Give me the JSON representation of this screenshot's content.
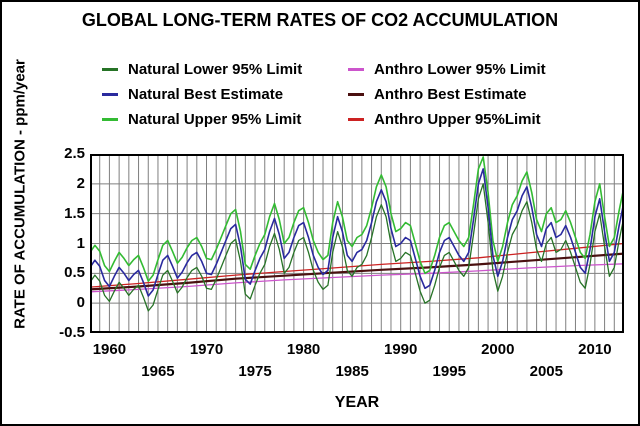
{
  "chart_data": {
    "type": "line",
    "title": "GLOBAL LONG-TERM RATES OF CO2 ACCUMULATION",
    "xlabel": "YEAR",
    "ylabel": "RATE OF ACCUMULATION - ppm/year",
    "xlim": [
      1958,
      2013
    ],
    "ylim": [
      -0.5,
      2.5
    ],
    "grid": true,
    "grid_color": "#7f7f7f",
    "frame_color": "#000000",
    "background": "#ffffff",
    "x_gridline_interval_years": 1,
    "y_gridline_interval": 0.5,
    "y_ticks": [
      "2.5",
      "2",
      "1.5",
      "1",
      "0.5",
      "0",
      "-0.5"
    ],
    "y_tick_values": [
      2.5,
      2,
      1.5,
      1,
      0.5,
      0,
      -0.5
    ],
    "x_ticks_row1": [
      1960,
      1970,
      1980,
      1990,
      2000,
      2010
    ],
    "x_ticks_row2": [
      1965,
      1975,
      1985,
      1995,
      2005
    ],
    "legend_position": "top",
    "legend": {
      "columns": [
        {
          "items": [
            {
              "label": "Natural Lower 95% Limit",
              "color": "#267326"
            },
            {
              "label": "Natural Best Estimate",
              "color": "#2a2a9e"
            },
            {
              "label": "Natural Upper 95% Limit",
              "color": "#33bb33"
            }
          ]
        },
        {
          "items": [
            {
              "label": "Anthro Lower 95% Limit",
              "color": "#cc55cc"
            },
            {
              "label": "Anthro Best Estimate",
              "color": "#4a1010"
            },
            {
              "label": "Anthro Upper 95%Limit",
              "color": "#cc2222"
            }
          ]
        }
      ]
    },
    "series": [
      {
        "name": "Natural Lower 95% Limit",
        "color": "#267326",
        "width": 1.3,
        "x_start": 1958,
        "x_step": 0.5,
        "values": [
          0.35,
          0.47,
          0.37,
          0.13,
          0.03,
          0.2,
          0.35,
          0.25,
          0.13,
          0.23,
          0.3,
          0.1,
          -0.13,
          -0.03,
          0.23,
          0.47,
          0.55,
          0.37,
          0.17,
          0.27,
          0.43,
          0.55,
          0.6,
          0.45,
          0.25,
          0.23,
          0.4,
          0.6,
          0.8,
          1.0,
          1.07,
          0.7,
          0.15,
          0.07,
          0.3,
          0.5,
          0.65,
          0.95,
          1.17,
          0.9,
          0.5,
          0.6,
          0.85,
          1.05,
          1.1,
          0.85,
          0.55,
          0.35,
          0.23,
          0.3,
          0.85,
          1.2,
          0.95,
          0.55,
          0.45,
          0.6,
          0.65,
          0.8,
          1.1,
          1.45,
          1.65,
          1.45,
          1.0,
          0.7,
          0.75,
          0.85,
          0.8,
          0.5,
          0.2,
          0.0,
          0.05,
          0.3,
          0.6,
          0.8,
          0.85,
          0.7,
          0.55,
          0.45,
          0.6,
          1.15,
          1.75,
          2.0,
          1.35,
          0.55,
          0.2,
          0.45,
          0.85,
          1.15,
          1.3,
          1.55,
          1.7,
          1.35,
          0.9,
          0.7,
          1.0,
          1.1,
          0.85,
          0.9,
          1.05,
          0.85,
          0.6,
          0.35,
          0.25,
          0.65,
          1.2,
          1.5,
          0.95,
          0.45,
          0.6,
          1.05,
          1.45
        ]
      },
      {
        "name": "Natural Best Estimate",
        "color": "#2a2a9e",
        "width": 1.6,
        "x_start": 1958,
        "x_step": 0.5,
        "values": [
          0.6,
          0.72,
          0.62,
          0.38,
          0.28,
          0.45,
          0.6,
          0.5,
          0.38,
          0.48,
          0.55,
          0.35,
          0.12,
          0.22,
          0.48,
          0.72,
          0.8,
          0.62,
          0.42,
          0.52,
          0.68,
          0.8,
          0.85,
          0.7,
          0.5,
          0.48,
          0.65,
          0.85,
          1.05,
          1.25,
          1.32,
          0.95,
          0.4,
          0.32,
          0.55,
          0.75,
          0.9,
          1.2,
          1.42,
          1.15,
          0.75,
          0.85,
          1.1,
          1.3,
          1.35,
          1.1,
          0.8,
          0.6,
          0.48,
          0.55,
          1.1,
          1.45,
          1.2,
          0.8,
          0.7,
          0.85,
          0.9,
          1.05,
          1.35,
          1.7,
          1.9,
          1.7,
          1.25,
          0.95,
          1.0,
          1.1,
          1.05,
          0.75,
          0.45,
          0.25,
          0.3,
          0.55,
          0.85,
          1.05,
          1.1,
          0.95,
          0.8,
          0.7,
          0.85,
          1.4,
          2.0,
          2.25,
          1.6,
          0.8,
          0.45,
          0.7,
          1.1,
          1.4,
          1.55,
          1.8,
          1.95,
          1.6,
          1.15,
          0.95,
          1.25,
          1.35,
          1.1,
          1.15,
          1.3,
          1.1,
          0.85,
          0.6,
          0.5,
          0.9,
          1.45,
          1.75,
          1.2,
          0.7,
          0.85,
          1.3,
          1.7
        ]
      },
      {
        "name": "Natural Upper 95% Limit",
        "color": "#33bb33",
        "width": 1.6,
        "x_start": 1958,
        "x_step": 0.5,
        "values": [
          0.85,
          0.97,
          0.87,
          0.63,
          0.53,
          0.7,
          0.85,
          0.75,
          0.63,
          0.73,
          0.8,
          0.6,
          0.37,
          0.47,
          0.73,
          0.97,
          1.05,
          0.87,
          0.67,
          0.77,
          0.93,
          1.05,
          1.1,
          0.95,
          0.75,
          0.73,
          0.9,
          1.1,
          1.3,
          1.5,
          1.57,
          1.2,
          0.65,
          0.57,
          0.8,
          1.0,
          1.15,
          1.45,
          1.67,
          1.4,
          1.0,
          1.1,
          1.35,
          1.55,
          1.6,
          1.35,
          1.05,
          0.85,
          0.73,
          0.8,
          1.35,
          1.7,
          1.45,
          1.05,
          0.95,
          1.1,
          1.15,
          1.3,
          1.6,
          1.95,
          2.15,
          1.95,
          1.5,
          1.2,
          1.25,
          1.35,
          1.3,
          1.0,
          0.7,
          0.5,
          0.55,
          0.8,
          1.1,
          1.3,
          1.35,
          1.2,
          1.05,
          0.95,
          1.1,
          1.65,
          2.25,
          2.45,
          1.85,
          1.05,
          0.7,
          0.95,
          1.35,
          1.65,
          1.8,
          2.05,
          2.2,
          1.85,
          1.4,
          1.2,
          1.5,
          1.6,
          1.35,
          1.4,
          1.55,
          1.35,
          1.1,
          0.85,
          0.75,
          1.15,
          1.7,
          2.0,
          1.45,
          0.95,
          1.1,
          1.55,
          1.95
        ]
      },
      {
        "name": "Anthro Lower 95% Limit",
        "color": "#cc55cc",
        "width": 1.3,
        "x": [
          1958,
          1963,
          1968,
          1973,
          1978,
          1983,
          1988,
          1993,
          1998,
          2003,
          2008,
          2013
        ],
        "values": [
          0.19,
          0.23,
          0.28,
          0.34,
          0.39,
          0.43,
          0.47,
          0.5,
          0.54,
          0.59,
          0.63,
          0.66
        ]
      },
      {
        "name": "Anthro Best Estimate",
        "color": "#4a1010",
        "width": 2.2,
        "x": [
          1958,
          1963,
          1968,
          1973,
          1978,
          1983,
          1988,
          1993,
          1998,
          2003,
          2008,
          2013
        ],
        "values": [
          0.23,
          0.28,
          0.34,
          0.41,
          0.46,
          0.51,
          0.56,
          0.6,
          0.65,
          0.71,
          0.77,
          0.83
        ]
      },
      {
        "name": "Anthro Upper 95%Limit",
        "color": "#cc2222",
        "width": 1.3,
        "x": [
          1958,
          1963,
          1968,
          1973,
          1978,
          1983,
          1988,
          1993,
          1998,
          2003,
          2008,
          2013
        ],
        "values": [
          0.27,
          0.33,
          0.4,
          0.47,
          0.53,
          0.59,
          0.65,
          0.7,
          0.76,
          0.84,
          0.92,
          1.0
        ]
      }
    ]
  }
}
